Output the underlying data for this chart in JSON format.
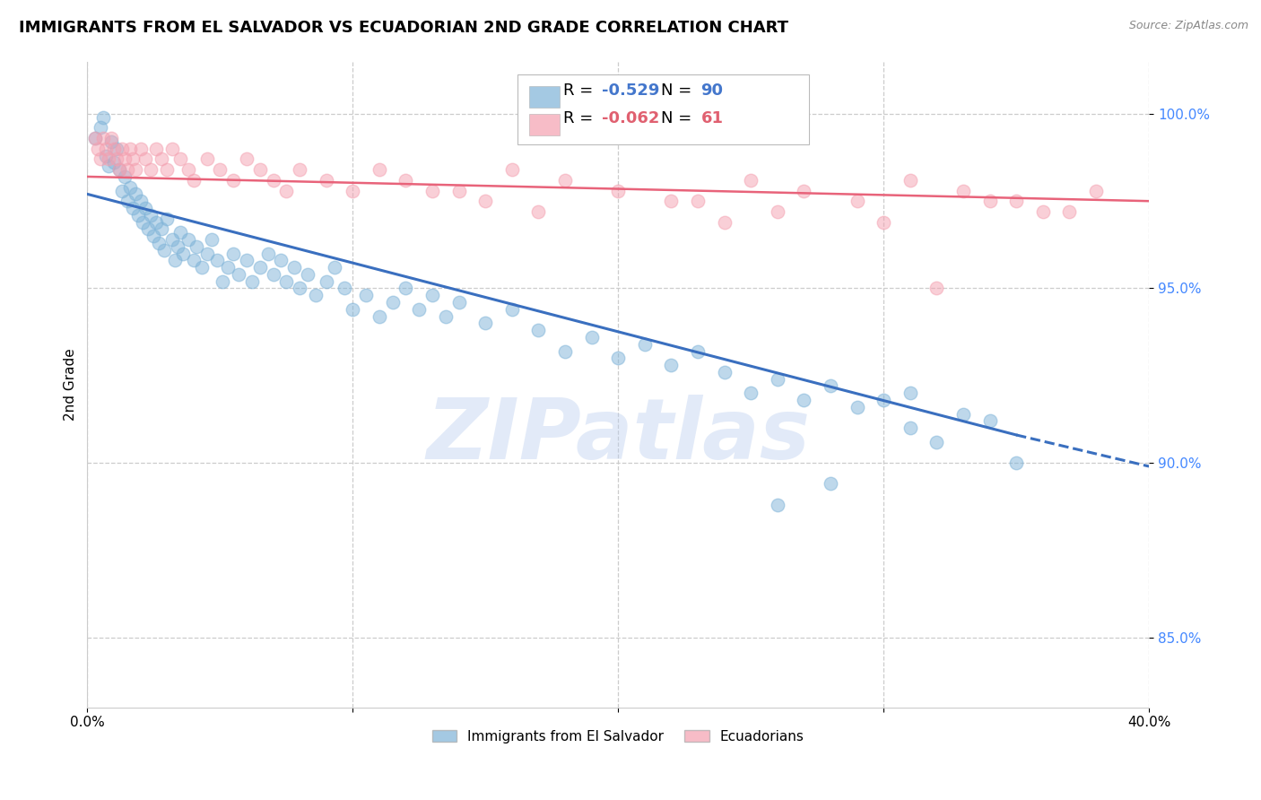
{
  "title": "IMMIGRANTS FROM EL SALVADOR VS ECUADORIAN 2ND GRADE CORRELATION CHART",
  "source": "Source: ZipAtlas.com",
  "ylabel": "2nd Grade",
  "xlim": [
    0.0,
    0.4
  ],
  "ylim": [
    0.83,
    1.015
  ],
  "ytick_labels": [
    "100.0%",
    "95.0%",
    "90.0%",
    "85.0%"
  ],
  "ytick_values": [
    1.0,
    0.95,
    0.9,
    0.85
  ],
  "xtick_positions": [
    0.0,
    0.1,
    0.2,
    0.3,
    0.4
  ],
  "xtick_labels": [
    "0.0%",
    "",
    "",
    "",
    "40.0%"
  ],
  "blue_R": "-0.529",
  "blue_N": "90",
  "pink_R": "-0.062",
  "pink_N": "61",
  "blue_color": "#7EB3D8",
  "pink_color": "#F4A0B0",
  "blue_line_color": "#3A6FBF",
  "pink_line_color": "#E8637A",
  "legend_label_blue": "Immigrants from El Salvador",
  "legend_label_pink": "Ecuadorians",
  "blue_scatter_x": [
    0.003,
    0.005,
    0.006,
    0.007,
    0.008,
    0.009,
    0.01,
    0.011,
    0.012,
    0.013,
    0.014,
    0.015,
    0.016,
    0.017,
    0.018,
    0.019,
    0.02,
    0.021,
    0.022,
    0.023,
    0.024,
    0.025,
    0.026,
    0.027,
    0.028,
    0.029,
    0.03,
    0.032,
    0.033,
    0.034,
    0.035,
    0.036,
    0.038,
    0.04,
    0.041,
    0.043,
    0.045,
    0.047,
    0.049,
    0.051,
    0.053,
    0.055,
    0.057,
    0.06,
    0.062,
    0.065,
    0.068,
    0.07,
    0.073,
    0.075,
    0.078,
    0.08,
    0.083,
    0.086,
    0.09,
    0.093,
    0.097,
    0.1,
    0.105,
    0.11,
    0.115,
    0.12,
    0.125,
    0.13,
    0.135,
    0.14,
    0.15,
    0.16,
    0.17,
    0.18,
    0.19,
    0.2,
    0.21,
    0.22,
    0.23,
    0.24,
    0.25,
    0.26,
    0.27,
    0.28,
    0.29,
    0.31,
    0.33,
    0.3,
    0.34,
    0.32,
    0.35,
    0.28,
    0.26,
    0.31
  ],
  "blue_scatter_y": [
    0.993,
    0.996,
    0.999,
    0.988,
    0.985,
    0.992,
    0.986,
    0.99,
    0.984,
    0.978,
    0.982,
    0.975,
    0.979,
    0.973,
    0.977,
    0.971,
    0.975,
    0.969,
    0.973,
    0.967,
    0.971,
    0.965,
    0.969,
    0.963,
    0.967,
    0.961,
    0.97,
    0.964,
    0.958,
    0.962,
    0.966,
    0.96,
    0.964,
    0.958,
    0.962,
    0.956,
    0.96,
    0.964,
    0.958,
    0.952,
    0.956,
    0.96,
    0.954,
    0.958,
    0.952,
    0.956,
    0.96,
    0.954,
    0.958,
    0.952,
    0.956,
    0.95,
    0.954,
    0.948,
    0.952,
    0.956,
    0.95,
    0.944,
    0.948,
    0.942,
    0.946,
    0.95,
    0.944,
    0.948,
    0.942,
    0.946,
    0.94,
    0.944,
    0.938,
    0.932,
    0.936,
    0.93,
    0.934,
    0.928,
    0.932,
    0.926,
    0.92,
    0.924,
    0.918,
    0.922,
    0.916,
    0.92,
    0.914,
    0.918,
    0.912,
    0.906,
    0.9,
    0.894,
    0.888,
    0.91
  ],
  "pink_scatter_x": [
    0.003,
    0.004,
    0.005,
    0.006,
    0.007,
    0.008,
    0.009,
    0.01,
    0.011,
    0.012,
    0.013,
    0.014,
    0.015,
    0.016,
    0.017,
    0.018,
    0.02,
    0.022,
    0.024,
    0.026,
    0.028,
    0.03,
    0.032,
    0.035,
    0.038,
    0.04,
    0.045,
    0.05,
    0.055,
    0.06,
    0.065,
    0.07,
    0.075,
    0.08,
    0.09,
    0.1,
    0.11,
    0.12,
    0.14,
    0.16,
    0.18,
    0.2,
    0.22,
    0.25,
    0.27,
    0.29,
    0.31,
    0.33,
    0.35,
    0.37,
    0.38,
    0.15,
    0.17,
    0.13,
    0.23,
    0.26,
    0.3,
    0.34,
    0.36,
    0.32,
    0.24
  ],
  "pink_scatter_y": [
    0.993,
    0.99,
    0.987,
    0.993,
    0.99,
    0.987,
    0.993,
    0.99,
    0.987,
    0.984,
    0.99,
    0.987,
    0.984,
    0.99,
    0.987,
    0.984,
    0.99,
    0.987,
    0.984,
    0.99,
    0.987,
    0.984,
    0.99,
    0.987,
    0.984,
    0.981,
    0.987,
    0.984,
    0.981,
    0.987,
    0.984,
    0.981,
    0.978,
    0.984,
    0.981,
    0.978,
    0.984,
    0.981,
    0.978,
    0.984,
    0.981,
    0.978,
    0.975,
    0.981,
    0.978,
    0.975,
    0.981,
    0.978,
    0.975,
    0.972,
    0.978,
    0.975,
    0.972,
    0.978,
    0.975,
    0.972,
    0.969,
    0.975,
    0.972,
    0.95,
    0.969
  ],
  "blue_trend_x0": 0.0,
  "blue_trend_x1": 0.35,
  "blue_trend_x2": 0.4,
  "blue_trend_y0": 0.977,
  "blue_trend_y1": 0.908,
  "blue_trend_y2": 0.899,
  "pink_trend_x0": 0.0,
  "pink_trend_x1": 0.4,
  "pink_trend_y0": 0.982,
  "pink_trend_y1": 0.975,
  "watermark_text": "ZIPatlas",
  "watermark_color": "#B8CCEE",
  "watermark_alpha": 0.4,
  "grid_color": "#CCCCCC",
  "bg_color": "#FFFFFF",
  "title_fontsize": 13,
  "axis_label_fontsize": 11,
  "tick_fontsize": 11,
  "scatter_size": 110,
  "scatter_alpha": 0.5,
  "blue_text_color": "#4477CC",
  "pink_text_color": "#E06070",
  "ytick_color": "#4488FF",
  "source_color": "#888888"
}
